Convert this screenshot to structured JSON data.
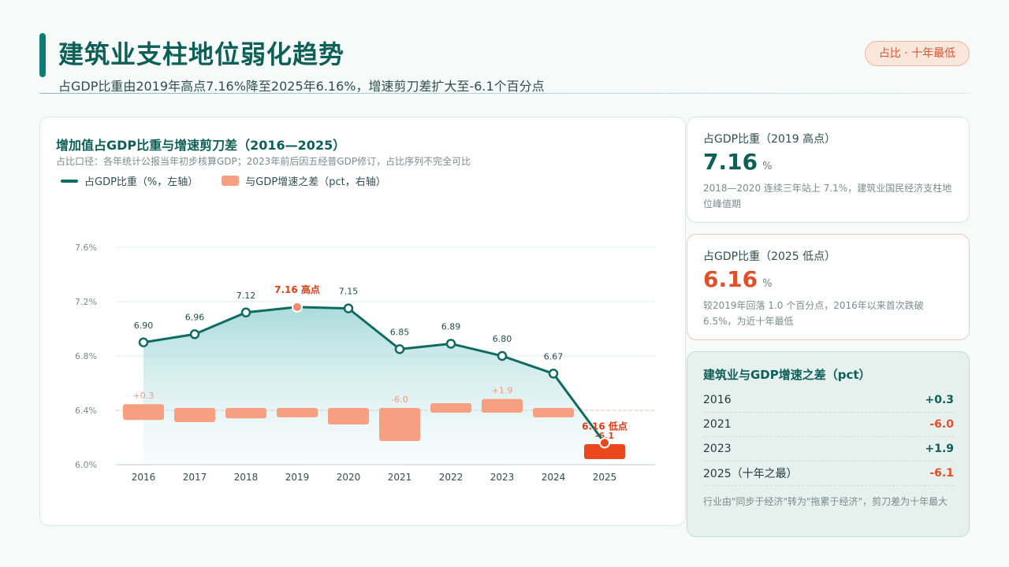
{
  "header": {
    "title": "建筑业支柱地位弱化趋势",
    "subtitle": "占GDP比重由2019年高点7.16%降至2025年6.16%，增速剪刀差扩大至-6.1个百分点",
    "badge": "占比 · 十年最低"
  },
  "chart_card": {
    "title": "增加值占GDP比重与增速剪刀差（2016—2025）",
    "note": "占比口径：各年统计公报当年初步核算GDP；2023年前后因五经普GDP修订，占比序列不完全可比",
    "legend_share": "占GDP比重（%，左轴）",
    "legend_gap": "与GDP增速之差（pct，右轴）"
  },
  "chart_data": {
    "type": "line+bar",
    "categories": [
      "2016",
      "2017",
      "2018",
      "2019",
      "2020",
      "2021",
      "2022",
      "2023",
      "2024",
      "2025"
    ],
    "series": [
      {
        "name": "占GDP比重（%，左轴）",
        "axis": "left",
        "kind": "line",
        "values": [
          6.9,
          6.96,
          7.12,
          7.16,
          7.15,
          6.85,
          6.89,
          6.8,
          6.67,
          6.16
        ],
        "labels": [
          "6.90",
          "6.96",
          "7.12",
          "7.16 高点",
          "7.15",
          "6.85",
          "6.89",
          "6.80",
          "6.67",
          "6.16 低点"
        ]
      },
      {
        "name": "与GDP增速之差（pct，右轴）",
        "axis": "right",
        "kind": "bar",
        "values": [
          0.3,
          -2.0,
          -1.2,
          -1.0,
          -2.5,
          -6.0,
          1.0,
          1.9,
          -1.0,
          -6.1
        ],
        "labels": [
          "+0.3",
          "",
          "",
          "",
          "",
          "-6.0",
          "",
          "+1.9",
          "",
          "-6.1"
        ]
      }
    ],
    "y_left_ticks": [
      "6.0%",
      "6.4%",
      "6.8%",
      "7.2%",
      "7.6%"
    ],
    "colors": {
      "line": "#0e6b60",
      "bar": "#f7a081",
      "highlight": "#e8481c",
      "peak": "#f08a6a"
    }
  },
  "cards": {
    "peak": {
      "label": "占GDP比重（2019 高点）",
      "value": "7.16",
      "unit": "%",
      "desc": "2018—2020 连续三年站上 7.1%，建筑业国民经济支柱地位峰值期"
    },
    "low": {
      "label": "占GDP比重（2025 低点）",
      "value": "6.16",
      "unit": "%",
      "desc": "较2019年回落 1.0 个百分点，2016年以来首次跌破6.5%，为近十年最低"
    },
    "gap_table": {
      "title": "建筑业与GDP增速之差（pct）",
      "rows": [
        {
          "year": "2016",
          "value": "+0.3"
        },
        {
          "year": "2021",
          "value": "-6.0"
        },
        {
          "year": "2023",
          "value": "+1.9"
        },
        {
          "year": "2025（十年之最）",
          "value": "-6.1"
        }
      ],
      "note": "行业由\"同步于经济\"转为\"拖累于经济\"，剪刀差为十年最大"
    }
  }
}
